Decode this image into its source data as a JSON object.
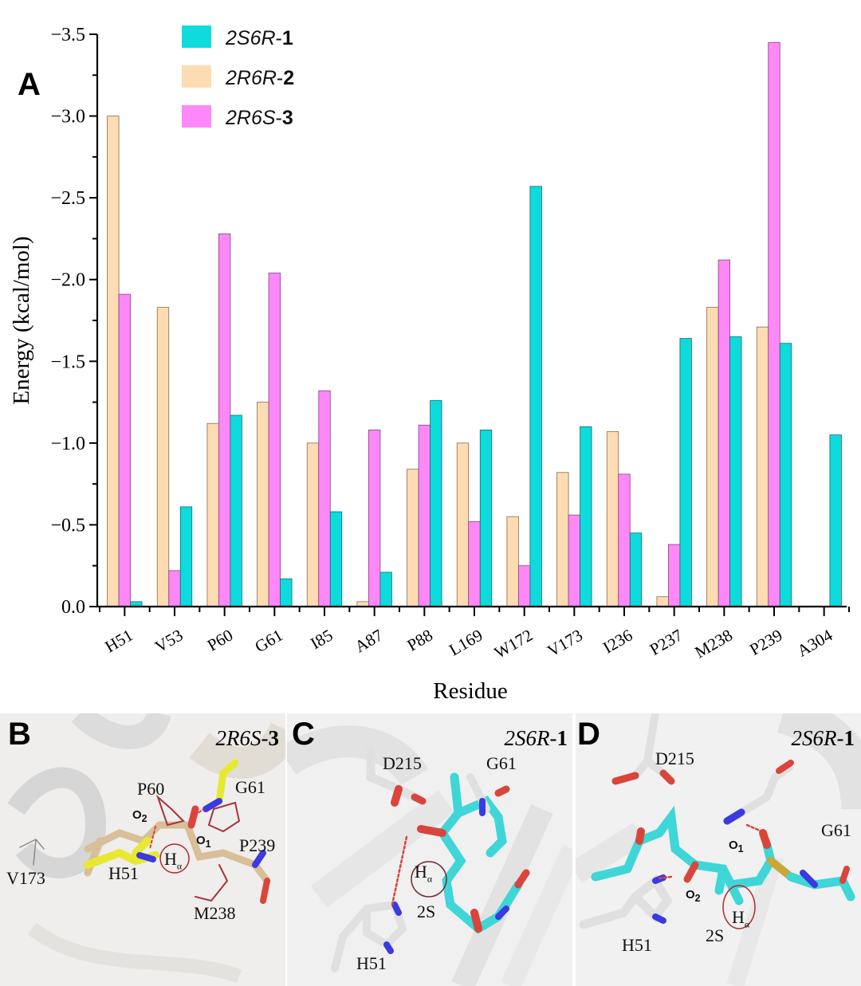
{
  "panel_labels": {
    "a": "A",
    "b": "B",
    "c": "C",
    "d": "D"
  },
  "chart_data": {
    "type": "bar",
    "title": "",
    "xlabel": "Residue",
    "ylabel": "Energy (kcal/mol)",
    "ylim": [
      0.0,
      -3.5
    ],
    "yticks": [
      "0.0",
      "−0.5",
      "−1.0",
      "−1.5",
      "−2.0",
      "−2.5",
      "−3.0",
      "−3.5"
    ],
    "ytick_values": [
      0.0,
      -0.5,
      -1.0,
      -1.5,
      -2.0,
      -2.5,
      -3.0,
      -3.5
    ],
    "categories": [
      "H51",
      "V53",
      "P60",
      "G61",
      "I85",
      "A87",
      "P88",
      "L169",
      "W172",
      "V173",
      "I236",
      "P237",
      "M238",
      "P239",
      "A304"
    ],
    "legend_position": "top-left",
    "grid": false,
    "series": [
      {
        "name": "2R6R-2",
        "name_italic": "2R6R",
        "name_bold": "2",
        "color": "#fddcb3",
        "edge": "#8a6a4a",
        "values": [
          -3.0,
          -1.83,
          -1.12,
          -1.25,
          -1.0,
          -0.03,
          -0.84,
          -1.0,
          -0.55,
          -0.82,
          -1.07,
          -0.06,
          -1.83,
          -1.71,
          0.0
        ]
      },
      {
        "name": "2R6S-3",
        "name_italic": "2R6S",
        "name_bold": "3",
        "color": "#ff88f8",
        "edge": "#7a4a7a",
        "values": [
          -1.91,
          -0.22,
          -2.28,
          -2.04,
          -1.32,
          -1.08,
          -1.11,
          -0.52,
          -0.25,
          -0.56,
          -0.81,
          -0.38,
          -2.12,
          -3.45,
          0.0
        ]
      },
      {
        "name": "2S6R-1",
        "name_italic": "2S6R",
        "name_bold": "1",
        "color": "#0ddbdc",
        "edge": "#1a6a6a",
        "values": [
          -0.03,
          -0.61,
          -1.17,
          -0.17,
          -0.58,
          -0.21,
          -1.26,
          -1.08,
          -2.57,
          -1.1,
          -0.45,
          -1.64,
          -1.65,
          -1.61,
          -1.05
        ]
      }
    ],
    "legend_order": [
      "2S6R-1",
      "2R6R-2",
      "2R6S-3"
    ]
  },
  "panels": {
    "b": {
      "title_italic": "2R6S",
      "title_bold": "3",
      "labels": {
        "p60": "P60",
        "g61": "G61",
        "o2": "O",
        "o2_sub": "2",
        "o1": "O",
        "o1_sub": "1",
        "p239": "P239",
        "h": "H",
        "h_sub": "α",
        "v173": "V173",
        "h51": "H51",
        "m238": "M238"
      }
    },
    "c": {
      "title_italic": "2S6R",
      "title_bold": "1",
      "labels": {
        "d215": "D215",
        "g61": "G61",
        "h": "H",
        "h_sub": "α",
        "s2": "2S",
        "h51": "H51"
      }
    },
    "d": {
      "title_italic": "2S6R",
      "title_bold": "1",
      "labels": {
        "d215": "D215",
        "g61": "G61",
        "o1": "O",
        "o1_sub": "1",
        "o2": "O",
        "o2_sub": "2",
        "h": "H",
        "h_sub": "α",
        "s2": "2S",
        "h51": "H51"
      }
    }
  },
  "colors": {
    "cyan": "#3fd6d8",
    "tan": "#d8bf98",
    "yellow": "#e8e832",
    "red": "#d9453a",
    "blue": "#3a3ae0",
    "white_stick": "#e6e6e6"
  }
}
